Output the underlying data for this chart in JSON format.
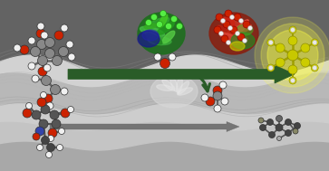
{
  "figsize": [
    3.63,
    1.89
  ],
  "dpi": 100,
  "bg_dark": "#6e7070",
  "bg_mid": "#919191",
  "bg_light": "#c0c0c0",
  "silica_color": "#c8c8c8",
  "arrow_green": "#2a5c28",
  "arrow_gray": "#606060",
  "white_atom": "#f2f2f2",
  "gray_atom": "#888888",
  "dark_gray_atom": "#555555",
  "red_atom": "#cc2200",
  "blue_atom": "#3344aa",
  "dark_blue_atom": "#223399",
  "yellow_mol": "#d4d400",
  "yellow_glow": "#f0f000",
  "brown_atom": "#8B6914"
}
